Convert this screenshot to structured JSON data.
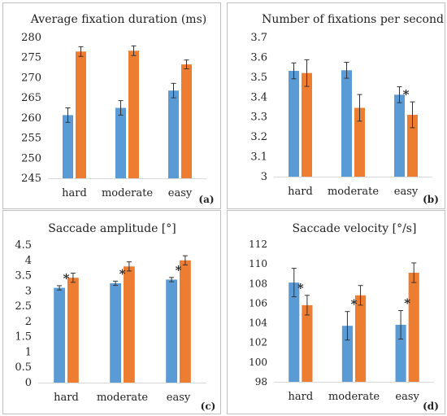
{
  "colors": {
    "series_a": "#5b9bd5",
    "series_b": "#ed7d31",
    "axis": "#d9d9d9",
    "error_bar": "#333333",
    "panel_border": "#bfbfbf"
  },
  "chart_data": [
    {
      "type": "bar",
      "panel_label": "(a)",
      "title": "Average fixation duration (ms)",
      "categories": [
        "hard",
        "moderate",
        "easy"
      ],
      "series": [
        {
          "values": [
            260.7,
            262.5,
            266.8
          ],
          "errors": [
            1.8,
            1.8,
            1.8
          ]
        },
        {
          "values": [
            276.5,
            276.7,
            273.3
          ],
          "errors": [
            1.2,
            1.2,
            1.1
          ]
        }
      ],
      "ylim": [
        245,
        280
      ],
      "yticks": [
        "245",
        "250",
        "255",
        "260",
        "265",
        "270",
        "275",
        "280"
      ],
      "ytick_values": [
        245,
        250,
        255,
        260,
        265,
        270,
        275,
        280
      ],
      "significant": [
        false,
        false,
        false
      ],
      "grid": false
    },
    {
      "type": "bar",
      "panel_label": "(b)",
      "title": "Number of fixations per second",
      "categories": [
        "hard",
        "moderate",
        "easy"
      ],
      "series": [
        {
          "values": [
            3.532,
            3.535,
            3.412
          ],
          "errors": [
            0.04,
            0.04,
            0.04
          ]
        },
        {
          "values": [
            3.521,
            3.346,
            3.311
          ],
          "errors": [
            0.067,
            0.067,
            0.065
          ]
        }
      ],
      "ylim": [
        3.0,
        3.7
      ],
      "yticks": [
        "3",
        "3.1",
        "3.2",
        "3.3",
        "3.4",
        "3.5",
        "3.6",
        "3.7"
      ],
      "ytick_values": [
        3.0,
        3.1,
        3.2,
        3.3,
        3.4,
        3.5,
        3.6,
        3.7
      ],
      "significant": [
        false,
        false,
        true
      ],
      "grid": false
    },
    {
      "type": "bar",
      "panel_label": "(c)",
      "title": "Saccade amplitude  [°]",
      "categories": [
        "hard",
        "moderate",
        "easy"
      ],
      "series": [
        {
          "values": [
            3.1,
            3.25,
            3.37
          ],
          "errors": [
            0.07,
            0.07,
            0.07
          ]
        },
        {
          "values": [
            3.43,
            3.8,
            4.0
          ],
          "errors": [
            0.15,
            0.15,
            0.15
          ]
        }
      ],
      "ylim": [
        0,
        4.5
      ],
      "yticks": [
        "0",
        "0.5",
        "1",
        "1.5",
        "2",
        "2.5",
        "3",
        "3.5",
        "4",
        "4.5"
      ],
      "ytick_values": [
        0,
        0.5,
        1,
        1.5,
        2,
        2.5,
        3,
        3.5,
        4,
        4.5
      ],
      "significant": [
        true,
        true,
        true
      ],
      "grid": false
    },
    {
      "type": "bar",
      "panel_label": "(d)",
      "title": "Saccade velocity [°/s]",
      "categories": [
        "hard",
        "moderate",
        "easy"
      ],
      "series": [
        {
          "values": [
            108.1,
            103.7,
            103.8
          ],
          "errors": [
            1.45,
            1.45,
            1.45
          ]
        },
        {
          "values": [
            105.8,
            106.8,
            109.1
          ],
          "errors": [
            1.0,
            1.0,
            1.0
          ]
        }
      ],
      "ylim": [
        98,
        112
      ],
      "yticks": [
        "98",
        "100",
        "102",
        "104",
        "106",
        "108",
        "110",
        "112"
      ],
      "ytick_values": [
        98,
        100,
        102,
        104,
        106,
        108,
        110,
        112
      ],
      "significant": [
        true,
        true,
        true
      ],
      "grid": false
    }
  ],
  "significance_marker": "*"
}
